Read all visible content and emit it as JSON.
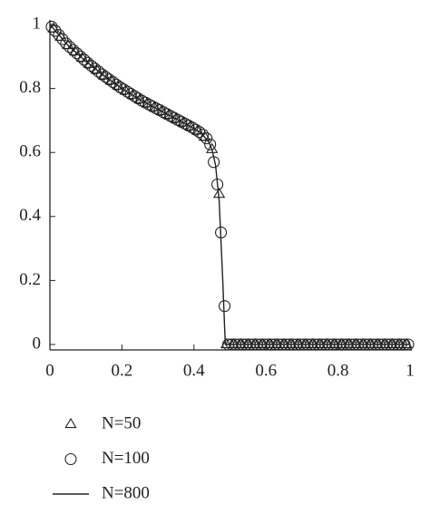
{
  "chart_data": {
    "type": "line",
    "xlim": [
      0,
      1
    ],
    "ylim": [
      -0.017,
      1
    ],
    "xticks": [
      0,
      0.2,
      0.4,
      0.6,
      0.8,
      1
    ],
    "yticks": [
      0,
      0.2,
      0.4,
      0.6,
      0.8,
      1
    ],
    "legend": "bottom-left",
    "series": [
      {
        "name": "N=50",
        "marker": "triangle",
        "color": "#222222",
        "x": [
          0.01,
          0.03,
          0.05,
          0.07,
          0.09,
          0.11,
          0.13,
          0.15,
          0.17,
          0.19,
          0.21,
          0.23,
          0.25,
          0.27,
          0.29,
          0.31,
          0.33,
          0.35,
          0.37,
          0.39,
          0.41,
          0.43,
          0.45,
          0.47,
          0.49,
          0.51,
          0.53,
          0.55,
          0.57,
          0.59,
          0.61,
          0.63,
          0.65,
          0.67,
          0.69,
          0.71,
          0.73,
          0.75,
          0.77,
          0.79,
          0.81,
          0.83,
          0.85,
          0.87,
          0.89,
          0.91,
          0.93,
          0.95,
          0.97,
          0.99
        ],
        "values": [
          0.987,
          0.961,
          0.935,
          0.915,
          0.895,
          0.876,
          0.858,
          0.84,
          0.824,
          0.808,
          0.793,
          0.779,
          0.765,
          0.753,
          0.741,
          0.729,
          0.717,
          0.705,
          0.693,
          0.681,
          0.668,
          0.648,
          0.61,
          0.47,
          0,
          0,
          0,
          0,
          0,
          0,
          0,
          0,
          0,
          0,
          0,
          0,
          0,
          0,
          0,
          0,
          0,
          0,
          0,
          0,
          0,
          0,
          0,
          0,
          0,
          0
        ]
      },
      {
        "name": "N=100",
        "marker": "circle",
        "color": "#222222",
        "x": [
          0.005,
          0.015,
          0.025,
          0.035,
          0.045,
          0.055,
          0.065,
          0.075,
          0.085,
          0.095,
          0.105,
          0.115,
          0.125,
          0.135,
          0.145,
          0.155,
          0.165,
          0.175,
          0.185,
          0.195,
          0.205,
          0.215,
          0.225,
          0.235,
          0.245,
          0.255,
          0.265,
          0.275,
          0.285,
          0.295,
          0.305,
          0.315,
          0.325,
          0.335,
          0.345,
          0.355,
          0.365,
          0.375,
          0.385,
          0.395,
          0.405,
          0.415,
          0.425,
          0.435,
          0.445,
          0.455,
          0.465,
          0.475,
          0.485,
          0.495,
          0.505,
          0.515,
          0.525,
          0.535,
          0.545,
          0.555,
          0.565,
          0.575,
          0.585,
          0.595,
          0.605,
          0.615,
          0.625,
          0.635,
          0.645,
          0.655,
          0.665,
          0.675,
          0.685,
          0.695,
          0.705,
          0.715,
          0.725,
          0.735,
          0.745,
          0.755,
          0.765,
          0.775,
          0.785,
          0.795,
          0.805,
          0.815,
          0.825,
          0.835,
          0.845,
          0.855,
          0.865,
          0.875,
          0.885,
          0.895,
          0.905,
          0.915,
          0.925,
          0.935,
          0.945,
          0.955,
          0.965,
          0.975,
          0.985,
          0.995
        ],
        "values": [
          0.993,
          0.98,
          0.967,
          0.954,
          0.941,
          0.93,
          0.92,
          0.91,
          0.9,
          0.89,
          0.88,
          0.871,
          0.862,
          0.853,
          0.844,
          0.836,
          0.828,
          0.82,
          0.812,
          0.804,
          0.797,
          0.79,
          0.783,
          0.776,
          0.769,
          0.762,
          0.756,
          0.75,
          0.744,
          0.738,
          0.732,
          0.726,
          0.72,
          0.714,
          0.708,
          0.702,
          0.696,
          0.69,
          0.684,
          0.678,
          0.671,
          0.664,
          0.655,
          0.644,
          0.625,
          0.57,
          0.5,
          0.35,
          0.12,
          0,
          0,
          0,
          0,
          0,
          0,
          0,
          0,
          0,
          0,
          0,
          0,
          0,
          0,
          0,
          0,
          0,
          0,
          0,
          0,
          0,
          0,
          0,
          0,
          0,
          0,
          0,
          0,
          0,
          0,
          0,
          0,
          0,
          0,
          0,
          0,
          0,
          0,
          0,
          0,
          0,
          0,
          0,
          0,
          0,
          0,
          0,
          0,
          0,
          0,
          0
        ]
      },
      {
        "name": "N=800",
        "marker": "line",
        "color": "#222222",
        "x": [
          0,
          0.05,
          0.1,
          0.15,
          0.2,
          0.25,
          0.3,
          0.35,
          0.4,
          0.42,
          0.44,
          0.45,
          0.46,
          0.47,
          0.48,
          0.487,
          1
        ],
        "values": [
          1,
          0.935,
          0.885,
          0.84,
          0.8,
          0.765,
          0.735,
          0.705,
          0.675,
          0.66,
          0.635,
          0.61,
          0.56,
          0.45,
          0.2,
          0,
          0
        ]
      }
    ]
  }
}
